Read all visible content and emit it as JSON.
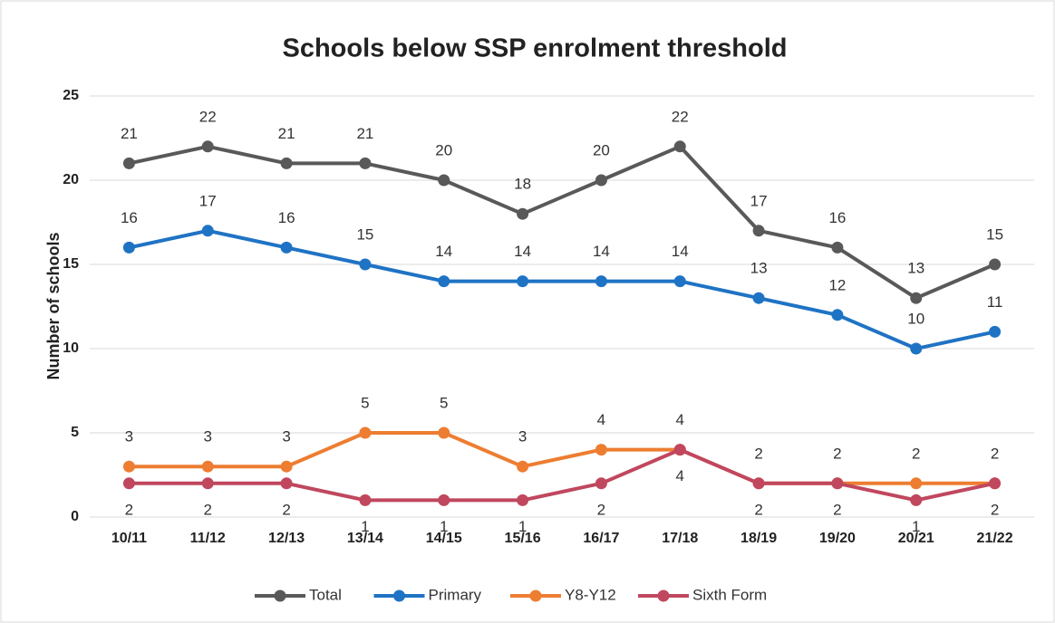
{
  "chart_data": {
    "type": "line",
    "title": "Schools below SSP enrolment threshold",
    "y_label": "Number of schools",
    "categories": [
      "10/11",
      "11/12",
      "12/13",
      "13/14",
      "14/15",
      "15/16",
      "16/17",
      "17/18",
      "18/19",
      "19/20",
      "20/21",
      "21/22"
    ],
    "series": [
      {
        "name": "Total",
        "color": "#595959",
        "values": [
          21,
          22,
          21,
          21,
          20,
          18,
          20,
          22,
          17,
          16,
          13,
          15
        ]
      },
      {
        "name": "Primary",
        "color": "#1f73c4",
        "values": [
          16,
          17,
          16,
          15,
          14,
          14,
          14,
          14,
          13,
          12,
          10,
          11
        ]
      },
      {
        "name": "Y8-Y12",
        "color": "#ed7d31",
        "values": [
          3,
          3,
          3,
          5,
          5,
          3,
          4,
          4,
          2,
          2,
          2,
          2
        ]
      },
      {
        "name": "Sixth Form",
        "color": "#c0475e",
        "values": [
          2,
          2,
          2,
          1,
          1,
          1,
          2,
          4,
          2,
          2,
          1,
          2
        ]
      }
    ],
    "ylim": [
      0,
      25
    ],
    "yticks": [
      0,
      5,
      10,
      15,
      20,
      25
    ],
    "grid": true,
    "legend": "bottom"
  }
}
